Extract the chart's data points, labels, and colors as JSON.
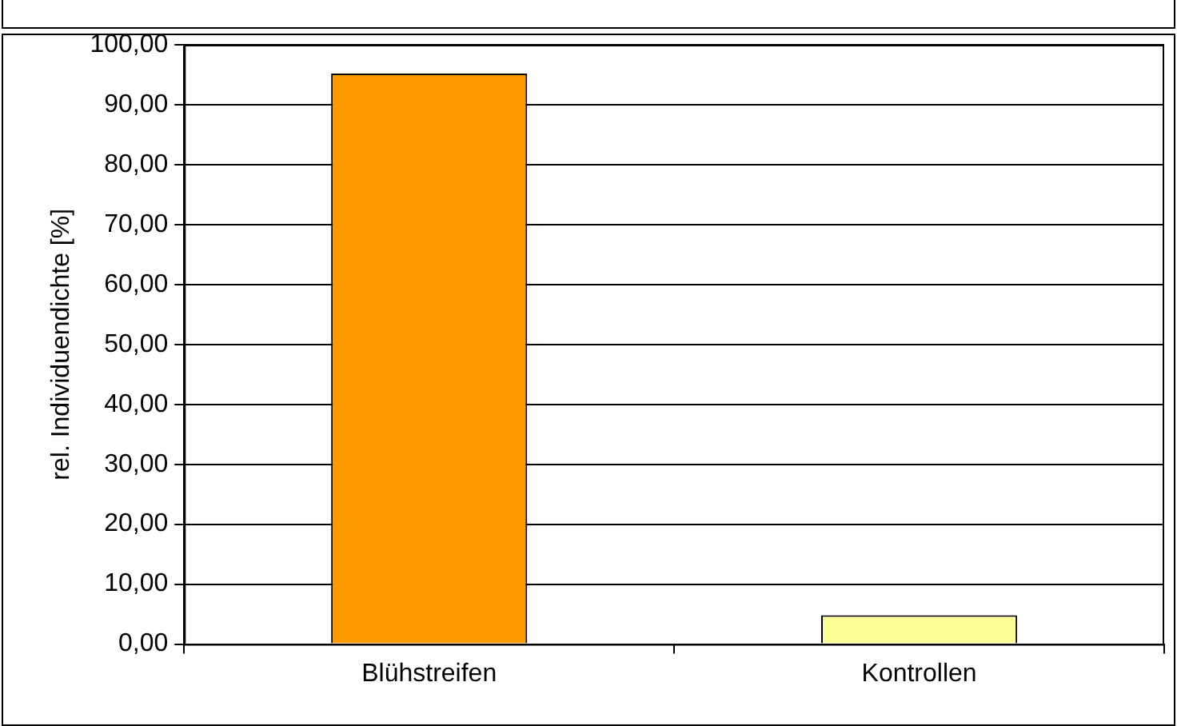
{
  "chart_data": {
    "type": "bar",
    "ylabel": "rel. Individuendichte [%]",
    "categories": [
      "Blühstreifen",
      "Kontrollen"
    ],
    "values": [
      95.2,
      4.8
    ],
    "colors": [
      "#ff9900",
      "#ffff99"
    ],
    "ylim": [
      0,
      100
    ],
    "yticks": [
      {
        "value": 0,
        "label": "0,00"
      },
      {
        "value": 10,
        "label": "10,00"
      },
      {
        "value": 20,
        "label": "20,00"
      },
      {
        "value": 30,
        "label": "30,00"
      },
      {
        "value": 40,
        "label": "40,00"
      },
      {
        "value": 50,
        "label": "50,00"
      },
      {
        "value": 60,
        "label": "60,00"
      },
      {
        "value": 70,
        "label": "70,00"
      },
      {
        "value": 80,
        "label": "80,00"
      },
      {
        "value": 90,
        "label": "90,00"
      },
      {
        "value": 100,
        "label": "100,00"
      }
    ],
    "grid": "y",
    "legend": false
  }
}
